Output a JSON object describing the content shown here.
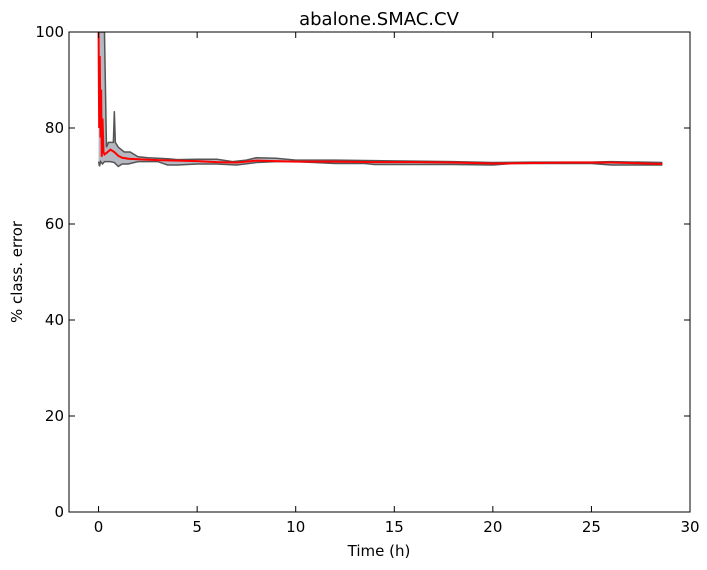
{
  "chart_data": {
    "type": "line",
    "title": "abalone.SMAC.CV",
    "xlabel": "Time (h)",
    "ylabel": "% class. error",
    "xlim": [
      -1.5,
      30
    ],
    "ylim": [
      0,
      100
    ],
    "xticks": [
      0,
      5,
      10,
      15,
      20,
      25,
      30
    ],
    "yticks": [
      0,
      20,
      40,
      60,
      80,
      100
    ],
    "xtick_labels": [
      "0",
      "5",
      "10",
      "15",
      "20",
      "25",
      "30"
    ],
    "ytick_labels": [
      "0",
      "20",
      "40",
      "60",
      "80",
      "100"
    ],
    "grid": false,
    "legend": "none",
    "colors": {
      "median": "#ff0000",
      "band_fill": "#a8abb5",
      "band_edge": "#555555"
    },
    "series": [
      {
        "role": "median",
        "x": [
          0.0,
          0.03,
          0.06,
          0.1,
          0.13,
          0.16,
          0.2,
          0.25,
          0.3,
          0.4,
          0.6,
          0.8,
          1.0,
          1.2,
          1.5,
          2.0,
          3.0,
          4.0,
          5.0,
          6.0,
          7.0,
          8.0,
          9.0,
          10.0,
          12.0,
          14.0,
          16.0,
          18.0,
          20.0,
          22.0,
          24.0,
          26.0,
          27.0,
          28.6
        ],
        "y": [
          100.0,
          80.0,
          95.0,
          78.0,
          88.0,
          74.0,
          82.0,
          75.0,
          74.5,
          74.8,
          75.5,
          75.0,
          74.2,
          73.8,
          73.6,
          73.5,
          73.3,
          73.2,
          73.1,
          72.9,
          72.8,
          73.2,
          73.1,
          73.0,
          73.0,
          72.9,
          72.9,
          72.8,
          72.6,
          72.7,
          72.8,
          72.8,
          72.7,
          72.5
        ]
      },
      {
        "role": "upper",
        "x": [
          0.0,
          0.05,
          0.1,
          0.15,
          0.2,
          0.3,
          0.4,
          0.5,
          0.6,
          0.75,
          0.8,
          0.85,
          1.0,
          1.3,
          1.6,
          2.0,
          2.5,
          3.5,
          4.0,
          5.0,
          6.0,
          6.8,
          7.5,
          8.0,
          9.0,
          10.0,
          12.0,
          14.0,
          16.0,
          18.0,
          20.0,
          22.0,
          25.0,
          26.0,
          28.6
        ],
        "y": [
          100.0,
          100.0,
          100.0,
          100.0,
          100.0,
          100.0,
          76.0,
          77.0,
          77.0,
          77.0,
          83.5,
          77.0,
          76.0,
          75.0,
          75.0,
          74.0,
          73.8,
          73.6,
          73.4,
          73.5,
          73.5,
          73.0,
          73.3,
          73.8,
          73.7,
          73.3,
          73.3,
          73.2,
          73.1,
          73.0,
          72.8,
          72.9,
          72.9,
          73.0,
          72.8
        ]
      },
      {
        "role": "lower",
        "x": [
          0.0,
          0.05,
          0.1,
          0.2,
          0.3,
          0.5,
          0.6,
          0.8,
          1.0,
          1.2,
          1.5,
          2.0,
          3.0,
          3.5,
          4.0,
          5.0,
          6.0,
          7.0,
          8.0,
          9.0,
          10.0,
          12.0,
          13.5,
          14.0,
          16.0,
          18.0,
          20.0,
          21.0,
          24.0,
          25.0,
          26.0,
          28.6
        ],
        "y": [
          73.0,
          72.0,
          73.0,
          72.5,
          73.0,
          73.0,
          73.0,
          72.8,
          72.0,
          72.5,
          72.5,
          73.0,
          73.0,
          72.3,
          72.3,
          72.5,
          72.5,
          72.3,
          72.8,
          73.0,
          73.0,
          72.6,
          72.6,
          72.4,
          72.4,
          72.4,
          72.3,
          72.6,
          72.6,
          72.6,
          72.3,
          72.3
        ]
      }
    ]
  }
}
